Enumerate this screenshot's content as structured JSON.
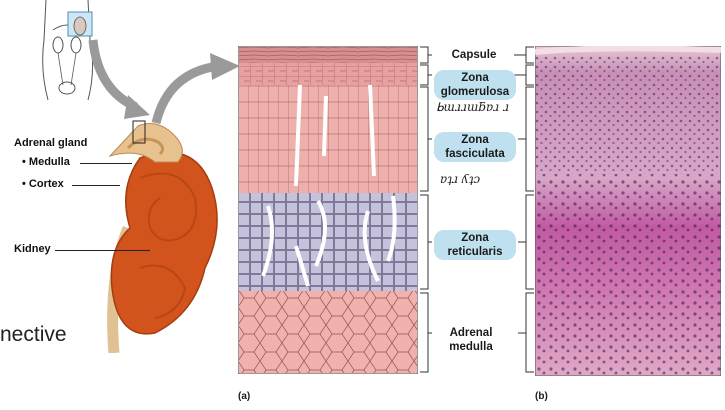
{
  "left": {
    "adrenal_gland": "Adrenal gland",
    "medulla": "• Medulla",
    "cortex": "• Cortex",
    "kidney": "Kidney",
    "partial_word": "nective"
  },
  "zones": {
    "capsule": "Capsule",
    "glomerulosa_1": "Zona",
    "glomerulosa_2": "glomerulosa",
    "fasciculata_1": "Zona",
    "fasciculata_2": "fasciculata",
    "reticularis_1": "Zona",
    "reticularis_2": "reticularis",
    "medulla_1": "Adrenal",
    "medulla_2": "medulla"
  },
  "handwriting": {
    "note1": "ᖯɯɹɹɯƃɐɹ ɹ",
    "note2": "ɐʇɹ ʎʇɔ"
  },
  "panels": {
    "a": "(a)",
    "b": "(b)"
  },
  "colors": {
    "capsule": "#d98f8f",
    "glomerulosa": "#e9a0a0",
    "fasciculata": "#eeb0ad",
    "reticularis": "#c7c2dc",
    "medulla": "#f0b2ad",
    "highlight": "#bfe0ee",
    "kidney": "#d2541c",
    "adrenal": "#e7c18e",
    "histology_top": "#d89bb6",
    "histology_bottom": "#c45a9e"
  }
}
